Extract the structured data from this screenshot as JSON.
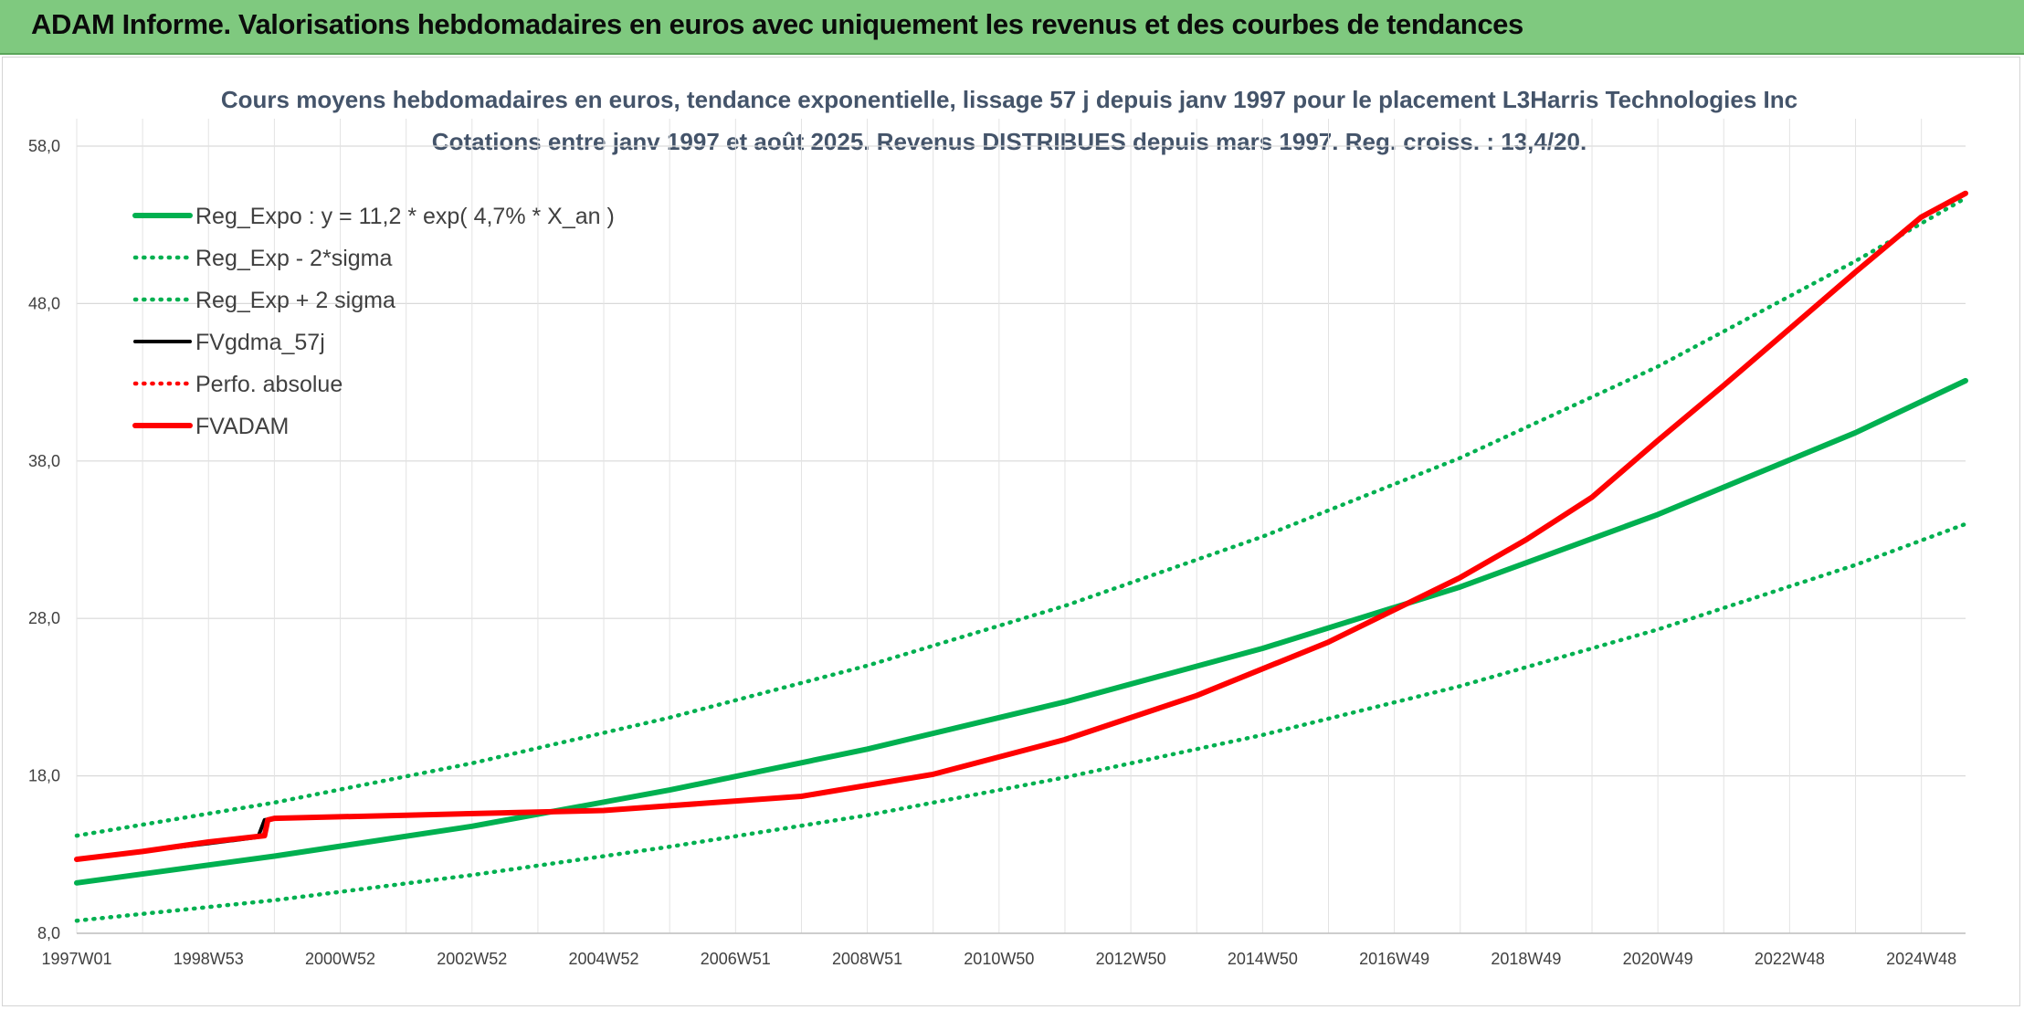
{
  "header": {
    "title": "ADAM Informe. Valorisations hebdomadaires en euros avec uniquement les revenus et des courbes de tendances"
  },
  "chart_data": {
    "type": "line",
    "title": "Cours moyens hebdomadaires en euros, tendance exponentielle, lissage 57 j depuis janv 1997 pour le placement L3Harris Technologies Inc",
    "subtitle": "Cotations entre janv 1997 et août 2025. Revenus DISTRIBUES depuis mars 1997. Reg. croiss. : 13,4/20.",
    "xlabel": "",
    "ylabel": "",
    "x_range": [
      1997.0,
      2025.67
    ],
    "ylim": [
      8,
      58
    ],
    "y_ticks": [
      "8,0",
      "18,0",
      "28,0",
      "38,0",
      "48,0",
      "58,0"
    ],
    "x_tick_labels": [
      "1997W01",
      "1998W53",
      "2000W52",
      "2002W52",
      "2004W52",
      "2006W51",
      "2008W51",
      "2010W50",
      "2012W50",
      "2014W50",
      "2016W49",
      "2018W49",
      "2020W49",
      "2022W48",
      "2024W48"
    ],
    "x_tick_positions": [
      1997.0,
      1999.0,
      2001.0,
      2003.0,
      2005.0,
      2007.0,
      2009.0,
      2011.0,
      2013.0,
      2015.0,
      2017.0,
      2019.0,
      2021.0,
      2023.0,
      2025.0
    ],
    "grid": true,
    "legend_position": "top-left",
    "series": [
      {
        "name": "Reg_Expo : y = 11,2 * exp( 4,7% *  X_an )",
        "color": "#00b050",
        "style": "solid",
        "x": [
          1997.0,
          2000.0,
          2003.0,
          2006.0,
          2009.0,
          2012.0,
          2015.0,
          2018.0,
          2021.0,
          2024.0,
          2025.67
        ],
        "y": [
          11.2,
          12.9,
          14.8,
          17.1,
          19.7,
          22.7,
          26.1,
          30.0,
          34.6,
          39.8,
          43.1
        ]
      },
      {
        "name": "Reg_Exp - 2*sigma",
        "color": "#00b050",
        "style": "dotted",
        "x": [
          1997.0,
          2000.0,
          2003.0,
          2006.0,
          2009.0,
          2012.0,
          2015.0,
          2018.0,
          2021.0,
          2024.0,
          2025.67
        ],
        "y": [
          8.8,
          10.1,
          11.7,
          13.5,
          15.5,
          17.9,
          20.6,
          23.7,
          27.3,
          31.4,
          34.0
        ]
      },
      {
        "name": "Reg_Exp + 2 sigma",
        "color": "#00b050",
        "style": "dotted",
        "x": [
          1997.0,
          2000.0,
          2003.0,
          2006.0,
          2009.0,
          2012.0,
          2015.0,
          2018.0,
          2021.0,
          2024.0,
          2025.67
        ],
        "y": [
          14.2,
          16.3,
          18.8,
          21.7,
          25.0,
          28.8,
          33.2,
          38.2,
          44.0,
          50.7,
          54.7
        ]
      },
      {
        "name": "FVgdma_57j",
        "color": "#000000",
        "style": "solid",
        "x": [
          1997.0,
          1998.0,
          1999.0,
          1999.75,
          1999.85,
          2000.0,
          2002.0,
          2005.0,
          2008.0,
          2010.0,
          2012.0,
          2014.0,
          2016.0,
          2018.0,
          2019.0,
          2020.0,
          2021.0,
          2022.0,
          2023.0,
          2024.0,
          2025.0,
          2025.67
        ],
        "y": [
          12.7,
          13.2,
          13.7,
          14.1,
          15.2,
          15.3,
          15.5,
          15.8,
          16.7,
          18.1,
          20.3,
          23.1,
          26.5,
          30.6,
          33.0,
          35.7,
          39.3,
          42.8,
          46.4,
          50.0,
          53.5,
          55.0
        ]
      },
      {
        "name": "Perfo. absolue",
        "color": "#ff0000",
        "style": "dotted",
        "x": [],
        "y": []
      },
      {
        "name": "FVADAM",
        "color": "#ff0000",
        "style": "solid",
        "x": [
          1997.0,
          1998.0,
          1999.0,
          1999.85,
          1999.9,
          2000.0,
          2002.0,
          2005.0,
          2008.0,
          2010.0,
          2012.0,
          2014.0,
          2016.0,
          2018.0,
          2019.0,
          2020.0,
          2021.0,
          2022.0,
          2023.0,
          2024.0,
          2025.0,
          2025.67
        ],
        "y": [
          12.7,
          13.2,
          13.8,
          14.2,
          15.2,
          15.3,
          15.5,
          15.8,
          16.7,
          18.1,
          20.3,
          23.1,
          26.5,
          30.6,
          33.0,
          35.7,
          39.3,
          42.8,
          46.4,
          50.0,
          53.5,
          55.0
        ]
      }
    ]
  }
}
